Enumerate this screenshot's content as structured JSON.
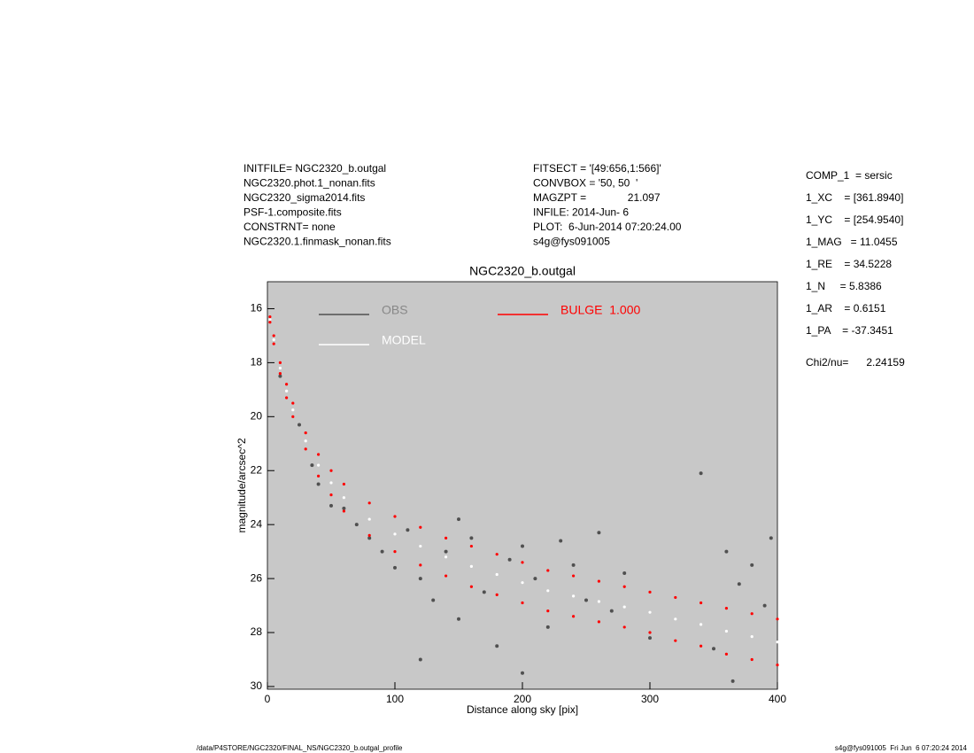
{
  "header": {
    "left": [
      "INITFILE= NGC2320_b.outgal",
      "NGC2320.phot.1_nonan.fits",
      "NGC2320_sigma2014.fits",
      "PSF-1.composite.fits",
      "CONSTRNT= none",
      "NGC2320.1.finmask_nonan.fits"
    ],
    "middle": [
      "FITSECT = '[49:656,1:566]'",
      "CONVBOX = '50, 50  '",
      "MAGZPT =              21.097",
      "INFILE: 2014-Jun- 6",
      "PLOT:  6-Jun-2014 07:20:24.00",
      "s4g@fys091005"
    ],
    "right": [
      "COMP_1  = sersic",
      "1_XC    = [361.8940]",
      "1_YC    = [254.9540]",
      "1_MAG   = 11.0455",
      "1_RE    = 34.5228",
      "1_N     = 5.8386",
      "1_AR    = 0.6151",
      "1_PA    = -37.3451"
    ],
    "chi": "Chi2/nu=      2.24159"
  },
  "footer": {
    "left": "/data/P4STORE/NGC2320/FINAL_NS/NGC2320_b.outgal_profile",
    "right": "s4g@fys091005  Fri Jun  6 07:20:24 2014"
  },
  "chart_data": {
    "type": "scatter",
    "title": "NGC2320_b.outgal",
    "x_label": "Distance along sky [pix]",
    "y_label": "magnitude/arcsec^2",
    "xlim": [
      0,
      400
    ],
    "ylim": [
      15,
      30.1
    ],
    "y_inverted": true,
    "xticks": [
      0,
      100,
      200,
      300,
      400
    ],
    "yticks": [
      16,
      18,
      20,
      22,
      24,
      26,
      28,
      30
    ],
    "background": "#c8c8c8",
    "series": [
      {
        "name": "OBS",
        "color": "#505050",
        "x": [
          10,
          25,
          35,
          40,
          50,
          60,
          70,
          80,
          90,
          100,
          110,
          120,
          130,
          140,
          150,
          160,
          170,
          180,
          190,
          200,
          210,
          220,
          230,
          240,
          250,
          260,
          270,
          280,
          300,
          340,
          350,
          360,
          370,
          380,
          390,
          395,
          365,
          200,
          120,
          150
        ],
        "values": [
          18.5,
          20.3,
          21.8,
          22.5,
          23.3,
          23.4,
          24.0,
          24.5,
          25.0,
          25.6,
          24.2,
          26.0,
          26.8,
          25.0,
          27.5,
          24.5,
          26.5,
          28.5,
          25.3,
          24.8,
          26.0,
          27.8,
          24.6,
          25.5,
          26.8,
          24.3,
          27.2,
          25.8,
          28.2,
          22.1,
          28.6,
          25.0,
          26.2,
          25.5,
          27.0,
          24.5,
          29.8,
          29.5,
          29.0,
          23.8
        ]
      },
      {
        "name": "MODEL",
        "color": "#ffffff",
        "x": [
          2,
          5,
          10,
          15,
          20,
          30,
          40,
          50,
          60,
          80,
          100,
          120,
          140,
          160,
          180,
          200,
          220,
          240,
          260,
          280,
          300,
          320,
          340,
          360,
          380,
          400
        ],
        "values": [
          16.4,
          17.15,
          18.2,
          19.05,
          19.75,
          20.9,
          21.8,
          22.45,
          23.0,
          23.8,
          24.35,
          24.8,
          25.2,
          25.55,
          25.85,
          26.15,
          26.45,
          26.65,
          26.85,
          27.05,
          27.25,
          27.5,
          27.7,
          27.95,
          28.15,
          28.35
        ]
      },
      {
        "name": "BULGE  1.000",
        "color": "#ff0000",
        "x": [
          2,
          5,
          10,
          15,
          20,
          30,
          40,
          50,
          60,
          80,
          100,
          120,
          140,
          160,
          180,
          200,
          220,
          240,
          260,
          280,
          300,
          320,
          340,
          360,
          380,
          400,
          2,
          5,
          10,
          15,
          20,
          30,
          40,
          50,
          60,
          80,
          100,
          120,
          140,
          160,
          180,
          200,
          220,
          240,
          260,
          280,
          300,
          320,
          340,
          360,
          380,
          400
        ],
        "values": [
          16.3,
          17.0,
          18.0,
          18.8,
          19.5,
          20.6,
          21.4,
          22.0,
          22.5,
          23.2,
          23.7,
          24.1,
          24.5,
          24.8,
          25.1,
          25.4,
          25.7,
          25.9,
          26.1,
          26.3,
          26.5,
          26.7,
          26.9,
          27.1,
          27.3,
          27.5,
          16.5,
          17.3,
          18.4,
          19.3,
          20.0,
          21.2,
          22.2,
          22.9,
          23.5,
          24.4,
          25.0,
          25.5,
          25.9,
          26.3,
          26.6,
          26.9,
          27.2,
          27.4,
          27.6,
          27.8,
          28.0,
          28.3,
          28.5,
          28.8,
          29.0,
          29.2
        ]
      }
    ]
  }
}
